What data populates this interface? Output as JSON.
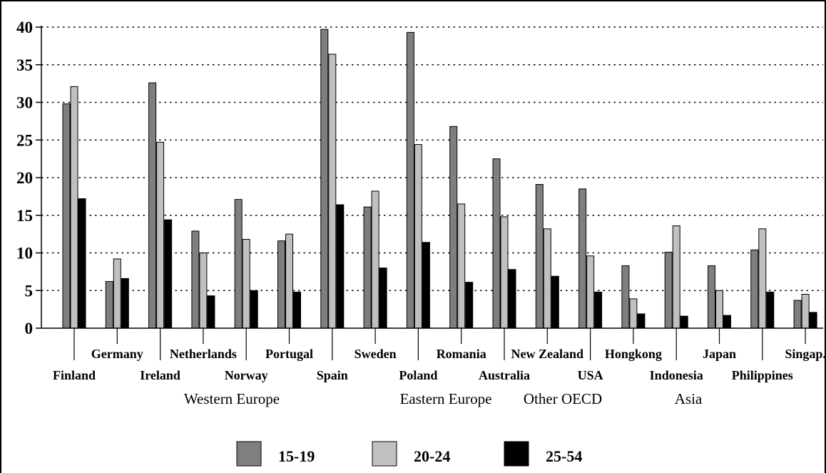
{
  "chart_data": {
    "type": "bar",
    "ylim": [
      0,
      40
    ],
    "yticks": [
      "0",
      "5",
      "10",
      "15",
      "20",
      "25",
      "30",
      "35",
      "40"
    ],
    "grid": true,
    "legend_position": "bottom",
    "colors": {
      "15-19": "#7f7f7f",
      "20-24": "#c0c0c0",
      "25-54": "#000000"
    },
    "categories": [
      {
        "label": "Finland",
        "row": "bottom"
      },
      {
        "label": "Germany",
        "row": "top"
      },
      {
        "label": "Ireland",
        "row": "bottom"
      },
      {
        "label": "Netherlands",
        "row": "top"
      },
      {
        "label": "Norway",
        "row": "bottom"
      },
      {
        "label": "Portugal",
        "row": "top"
      },
      {
        "label": "Spain",
        "row": "bottom"
      },
      {
        "label": "Sweden",
        "row": "top"
      },
      {
        "label": "Poland",
        "row": "bottom"
      },
      {
        "label": "Romania",
        "row": "top"
      },
      {
        "label": "Australia",
        "row": "bottom"
      },
      {
        "label": "New Zealand",
        "row": "top"
      },
      {
        "label": "USA",
        "row": "bottom"
      },
      {
        "label": "Hongkong",
        "row": "top"
      },
      {
        "label": "Indonesia",
        "row": "bottom"
      },
      {
        "label": "Japan",
        "row": "top"
      },
      {
        "label": "Philippines",
        "row": "bottom"
      },
      {
        "label": "Singap.",
        "row": "top"
      }
    ],
    "series": [
      {
        "name": "15-19",
        "values": [
          29.8,
          6.2,
          32.6,
          12.9,
          17.1,
          11.6,
          39.7,
          16.1,
          39.3,
          26.8,
          22.5,
          19.1,
          18.5,
          8.3,
          10.1,
          8.3,
          10.4,
          3.7
        ]
      },
      {
        "name": "20-24",
        "values": [
          32.1,
          9.2,
          24.7,
          10.0,
          11.8,
          12.5,
          36.4,
          18.2,
          24.4,
          16.5,
          14.8,
          13.2,
          9.6,
          3.9,
          13.6,
          5.0,
          13.2,
          4.5
        ]
      },
      {
        "name": "25-54",
        "values": [
          17.2,
          6.6,
          14.4,
          4.3,
          5.0,
          4.8,
          16.4,
          8.0,
          11.4,
          6.1,
          7.8,
          6.9,
          4.8,
          1.9,
          1.6,
          1.7,
          4.8,
          2.1
        ]
      }
    ],
    "groups": [
      {
        "label": "Western Europe",
        "span": [
          0,
          7
        ]
      },
      {
        "label": "Eastern Europe",
        "span": [
          8,
          9
        ]
      },
      {
        "label": "Other OECD",
        "span": [
          10,
          12
        ]
      },
      {
        "label": "Asia",
        "span": [
          13,
          17
        ]
      }
    ]
  }
}
